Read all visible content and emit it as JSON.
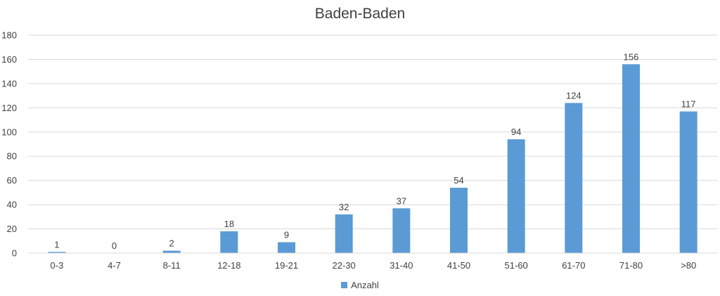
{
  "chart_data": {
    "type": "bar",
    "title": "Baden-Baden",
    "categories": [
      "0-3",
      "4-7",
      "8-11",
      "12-18",
      "19-21",
      "22-30",
      "31-40",
      "41-50",
      "51-60",
      "61-70",
      "71-80",
      ">80"
    ],
    "series": [
      {
        "name": "Anzahl",
        "values": [
          1,
          0,
          2,
          18,
          9,
          32,
          37,
          54,
          94,
          124,
          156,
          117
        ]
      }
    ],
    "ylim": [
      0,
      180
    ],
    "yticks": [
      0,
      20,
      40,
      60,
      80,
      100,
      120,
      140,
      160,
      180
    ],
    "grid": true,
    "legend_position": "bottom",
    "bar_color": "#5b9bd5"
  }
}
